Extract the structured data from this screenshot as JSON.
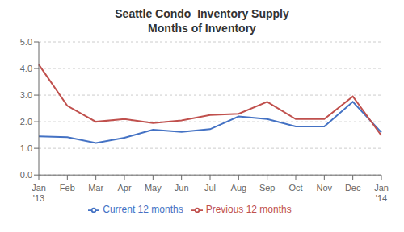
{
  "chart_data": {
    "type": "line",
    "title": "Seattle Condo  Inventory Supply",
    "subtitle": "Months of Inventory",
    "categories": [
      "Jan\n'13",
      "Feb",
      "Mar",
      "Apr",
      "May",
      "Jun",
      "Jul",
      "Aug",
      "Sep",
      "Oct",
      "Nov",
      "Dec",
      "Jan\n'14"
    ],
    "series": [
      {
        "name": "Current 12 months",
        "color": "#4472C4",
        "values": [
          1.45,
          1.42,
          1.2,
          1.4,
          1.7,
          1.62,
          1.72,
          2.2,
          2.1,
          1.82,
          1.82,
          2.75,
          1.6
        ]
      },
      {
        "name": "Previous 12 months",
        "color": "#C0504D",
        "values": [
          4.15,
          2.6,
          2.0,
          2.1,
          1.95,
          2.05,
          2.25,
          2.3,
          2.75,
          2.1,
          2.1,
          2.95,
          1.48
        ]
      }
    ],
    "ylim": [
      0.0,
      5.0
    ],
    "yticks": [
      {
        "value": 0.0,
        "label": "0.0"
      },
      {
        "value": 1.0,
        "label": "1.0"
      },
      {
        "value": 2.0,
        "label": "2.0"
      },
      {
        "value": 3.0,
        "label": "3.0"
      },
      {
        "value": 4.0,
        "label": "4.0"
      },
      {
        "value": 5.0,
        "label": "5.0"
      }
    ],
    "grid": true,
    "legend": "bottom"
  }
}
